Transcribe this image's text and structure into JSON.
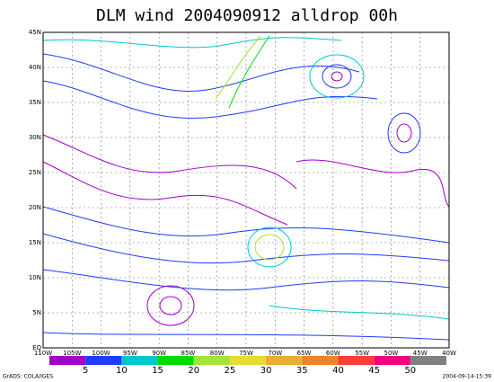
{
  "title": "DLM wind 2004090912 alldrop 00h",
  "map": {
    "lon_labels": [
      "110W",
      "105W",
      "100W",
      "95W",
      "90W",
      "85W",
      "80W",
      "75W",
      "70W",
      "65W",
      "60W",
      "55W",
      "50W",
      "45W",
      "40W"
    ],
    "lat_labels": [
      "EQ",
      "5N",
      "10N",
      "15N",
      "20N",
      "25N",
      "30N",
      "35N",
      "40N",
      "45N"
    ]
  },
  "colorbar": {
    "labels": [
      "5",
      "10",
      "15",
      "20",
      "25",
      "30",
      "35",
      "40",
      "45",
      "50"
    ],
    "colors": [
      "#a000c8",
      "#1e3cff",
      "#00c8c8",
      "#00dc00",
      "#a0e632",
      "#e6dc32",
      "#e6af2d",
      "#f08228",
      "#fa3c3c",
      "#f00082",
      "#808080"
    ]
  },
  "footer": {
    "left": "GrADS: COLA/IGES",
    "right": "2004-09-14-15:39"
  }
}
